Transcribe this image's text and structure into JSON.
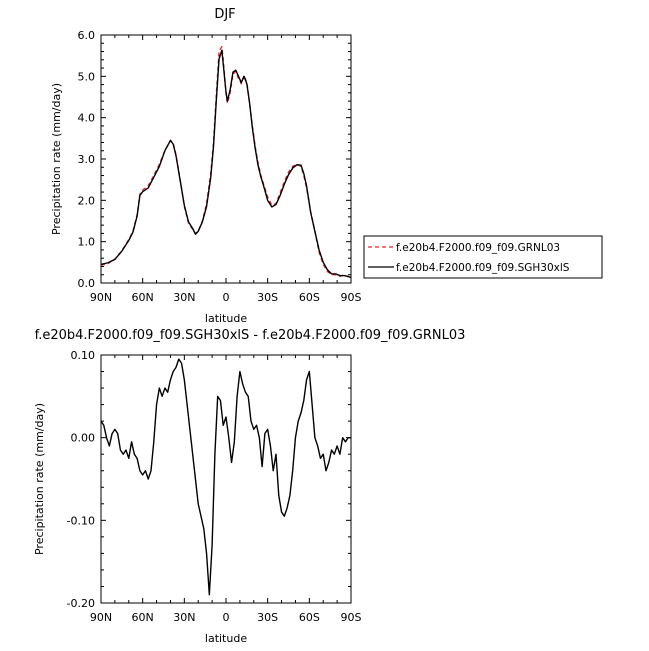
{
  "chart_data": [
    {
      "type": "line",
      "title": "DJF",
      "xlabel": "latitude",
      "ylabel": "Precipitation rate (mm/day)",
      "xlim": [
        -90,
        90
      ],
      "ylim": [
        0,
        6
      ],
      "x_ticks": [
        -90,
        -60,
        -30,
        0,
        30,
        60,
        90
      ],
      "x_tick_labels": [
        "90N",
        "60N",
        "30N",
        "0",
        "30S",
        "60S",
        "90S"
      ],
      "y_ticks": [
        0,
        1,
        2,
        3,
        4,
        5,
        6
      ],
      "y_tick_labels": [
        "0.0",
        "1.0",
        "2.0",
        "3.0",
        "4.0",
        "5.0",
        "6.0"
      ],
      "legend_position": "right-bottom-outside",
      "series": [
        {
          "name": "f.e20b4.F2000.f09_f09.GRNL03",
          "color": "#e8232a",
          "dash": "dashed",
          "x": [
            -90,
            -85,
            -80,
            -75,
            -70,
            -67,
            -64,
            -62,
            -60,
            -56,
            -52,
            -48,
            -44,
            -40,
            -38,
            -36,
            -33,
            -30,
            -27,
            -24,
            -22,
            -20,
            -17,
            -14,
            -11,
            -9,
            -7,
            -5,
            -3,
            -2,
            0,
            1,
            3,
            5,
            7,
            9,
            11,
            13,
            15,
            17,
            19,
            21,
            23,
            25,
            27,
            30,
            33,
            36,
            39,
            42,
            45,
            48,
            51,
            54,
            56,
            58,
            61,
            64,
            67,
            70,
            73,
            76,
            79,
            82,
            85,
            88,
            90
          ],
          "y": [
            0.43,
            0.47,
            0.58,
            0.78,
            1.05,
            1.25,
            1.65,
            2.15,
            2.25,
            2.35,
            2.6,
            2.87,
            3.2,
            3.45,
            3.38,
            3.1,
            2.5,
            1.85,
            1.45,
            1.3,
            1.2,
            1.25,
            1.5,
            1.92,
            2.65,
            3.4,
            4.55,
            5.6,
            5.72,
            5.4,
            4.6,
            4.35,
            4.6,
            5.05,
            5.12,
            4.95,
            4.82,
            5.02,
            4.85,
            4.35,
            3.8,
            3.3,
            2.92,
            2.62,
            2.4,
            2.08,
            1.88,
            1.92,
            2.18,
            2.45,
            2.68,
            2.82,
            2.88,
            2.82,
            2.6,
            2.3,
            1.72,
            1.25,
            0.75,
            0.45,
            0.28,
            0.2,
            0.2,
            0.16,
            0.19,
            0.15,
            0.14
          ]
        },
        {
          "name": "f.e20b4.F2000.f09_f09.SGH30xlS",
          "color": "#000000",
          "dash": "solid",
          "x": [
            -90,
            -85,
            -80,
            -75,
            -70,
            -67,
            -64,
            -62,
            -60,
            -56,
            -52,
            -48,
            -44,
            -40,
            -38,
            -36,
            -33,
            -30,
            -27,
            -24,
            -22,
            -20,
            -17,
            -14,
            -11,
            -9,
            -7,
            -5,
            -3,
            -2,
            0,
            1,
            3,
            5,
            7,
            9,
            11,
            13,
            15,
            17,
            19,
            21,
            23,
            25,
            27,
            30,
            33,
            36,
            39,
            42,
            45,
            48,
            51,
            54,
            56,
            58,
            61,
            64,
            67,
            70,
            73,
            76,
            79,
            82,
            85,
            88,
            90
          ],
          "y": [
            0.45,
            0.49,
            0.57,
            0.77,
            1.03,
            1.23,
            1.62,
            2.12,
            2.21,
            2.3,
            2.56,
            2.82,
            3.2,
            3.45,
            3.36,
            3.08,
            2.48,
            1.88,
            1.48,
            1.32,
            1.18,
            1.25,
            1.48,
            1.85,
            2.55,
            3.3,
            4.4,
            5.42,
            5.63,
            5.3,
            4.62,
            4.4,
            4.68,
            5.1,
            5.15,
            5.0,
            4.85,
            5.0,
            4.82,
            4.35,
            3.75,
            3.26,
            2.86,
            2.58,
            2.36,
            2.0,
            1.84,
            1.9,
            2.12,
            2.39,
            2.62,
            2.78,
            2.86,
            2.85,
            2.65,
            2.35,
            1.7,
            1.25,
            0.8,
            0.5,
            0.32,
            0.22,
            0.22,
            0.18,
            0.18,
            0.16,
            0.13
          ]
        }
      ]
    },
    {
      "type": "line",
      "title": "f.e20b4.F2000.f09_f09.SGH30xlS - f.e20b4.F2000.f09_f09.GRNL03",
      "xlabel": "latitude",
      "ylabel": "Precipitation rate (mm/day)",
      "xlim": [
        -90,
        90
      ],
      "ylim": [
        -0.2,
        0.1
      ],
      "x_ticks": [
        -90,
        -60,
        -30,
        0,
        30,
        60,
        90
      ],
      "x_tick_labels": [
        "90N",
        "60N",
        "30N",
        "0",
        "30S",
        "60S",
        "90S"
      ],
      "y_ticks": [
        -0.2,
        -0.1,
        0.0,
        0.1
      ],
      "y_tick_labels": [
        "-0.20",
        "-0.10",
        "0.00",
        "0.10"
      ],
      "series": [
        {
          "name": "",
          "color": "#000000",
          "dash": "solid",
          "x": [
            -90,
            -88,
            -86,
            -84,
            -82,
            -80,
            -78,
            -76,
            -74,
            -72,
            -70,
            -68,
            -66,
            -64,
            -62,
            -60,
            -58,
            -56,
            -54,
            -52,
            -50,
            -48,
            -46,
            -44,
            -42,
            -40,
            -38,
            -36,
            -34,
            -32,
            -30,
            -28,
            -26,
            -24,
            -22,
            -20,
            -18,
            -16,
            -14,
            -12,
            -10,
            -8,
            -6,
            -4,
            -2,
            0,
            2,
            4,
            6,
            8,
            10,
            12,
            14,
            16,
            18,
            20,
            22,
            24,
            26,
            28,
            30,
            32,
            34,
            36,
            38,
            40,
            42,
            44,
            46,
            48,
            50,
            52,
            54,
            56,
            58,
            60,
            62,
            64,
            66,
            68,
            70,
            72,
            74,
            76,
            78,
            80,
            82,
            84,
            86,
            88,
            90
          ],
          "y": [
            0.02,
            0.015,
            0.0,
            -0.01,
            0.005,
            0.01,
            0.005,
            -0.015,
            -0.02,
            -0.015,
            -0.025,
            -0.005,
            -0.02,
            -0.025,
            -0.04,
            -0.045,
            -0.04,
            -0.05,
            -0.04,
            -0.005,
            0.04,
            0.06,
            0.05,
            0.06,
            0.055,
            0.07,
            0.08,
            0.085,
            0.095,
            0.09,
            0.07,
            0.04,
            0.01,
            -0.02,
            -0.05,
            -0.08,
            -0.095,
            -0.11,
            -0.14,
            -0.19,
            -0.13,
            -0.02,
            0.05,
            0.045,
            0.015,
            0.025,
            0.0,
            -0.03,
            -0.005,
            0.05,
            0.08,
            0.065,
            0.055,
            0.05,
            0.02,
            0.01,
            0.015,
            0.0,
            -0.035,
            0.005,
            0.01,
            -0.01,
            -0.04,
            -0.02,
            -0.07,
            -0.09,
            -0.095,
            -0.085,
            -0.07,
            -0.04,
            0.0,
            0.02,
            0.03,
            0.045,
            0.07,
            0.08,
            0.04,
            0.0,
            -0.01,
            -0.025,
            -0.02,
            -0.04,
            -0.03,
            -0.015,
            -0.02,
            -0.01,
            -0.02,
            0.0,
            -0.005,
            0.0,
            0.0
          ]
        }
      ]
    }
  ]
}
